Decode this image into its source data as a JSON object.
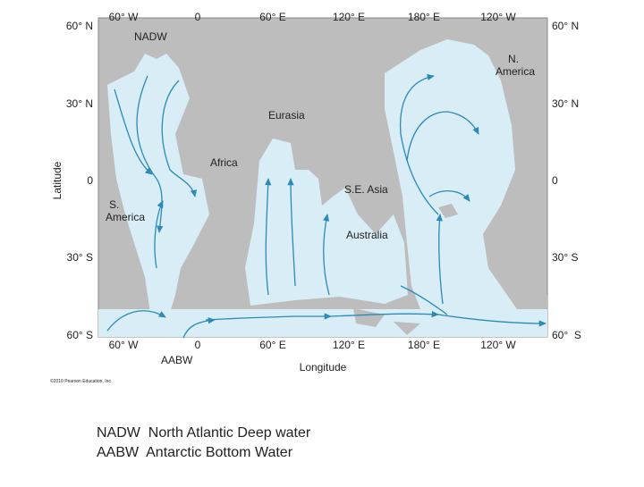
{
  "map": {
    "top_labels": [
      "60° W",
      "0",
      "60° E",
      "120° E",
      "180° E",
      "120° W"
    ],
    "bottom_labels": [
      "60° W",
      "0",
      "60° E",
      "120° E",
      "180° E",
      "120° W"
    ],
    "left_labels": [
      "60° N",
      "30° N",
      "0",
      "30° S",
      "60° S"
    ],
    "right_labels": [
      "60° N",
      "30° N",
      "0",
      "30° S",
      "60°  S"
    ],
    "y_axis_title": "Latitude",
    "x_axis_title": "Longitude",
    "regions": {
      "nadw": "NADW",
      "aabw": "AABW",
      "eurasia": "Eurasia",
      "africa": "Africa",
      "se_asia": "S.E. Asia",
      "australia": "Australia",
      "s_america": [
        "S.",
        "America"
      ],
      "n_america": [
        "N.",
        "America"
      ]
    },
    "copyright": "©2010 Pearson Education, Inc."
  },
  "legend": [
    "NADW  North Atlantic Deep water",
    "AABW  Antarctic Bottom Water"
  ]
}
